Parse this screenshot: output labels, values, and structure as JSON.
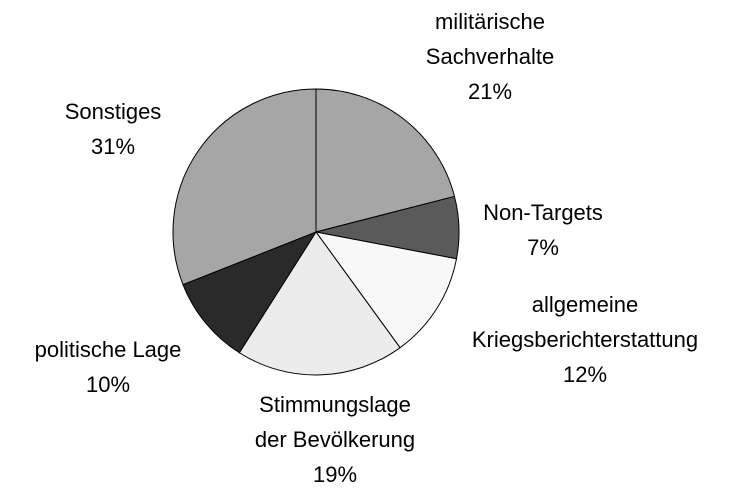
{
  "chart_data": {
    "type": "pie",
    "categories": [
      "militärische\nSachverhalte",
      "Non-Targets",
      "allgemeine\nKriegsberichterstattung",
      "Stimmungslage\nder Bevölkerung",
      "politische Lage",
      "Sonstiges"
    ],
    "values": [
      21,
      7,
      12,
      19,
      10,
      31
    ],
    "value_labels": [
      "21%",
      "7%",
      "12%",
      "19%",
      "10%",
      "31%"
    ],
    "colors": [
      "#a6a6a6",
      "#5a5a5a",
      "#f8f8f8",
      "#ececec",
      "#2a2a2a",
      "#a6a6a6"
    ]
  }
}
